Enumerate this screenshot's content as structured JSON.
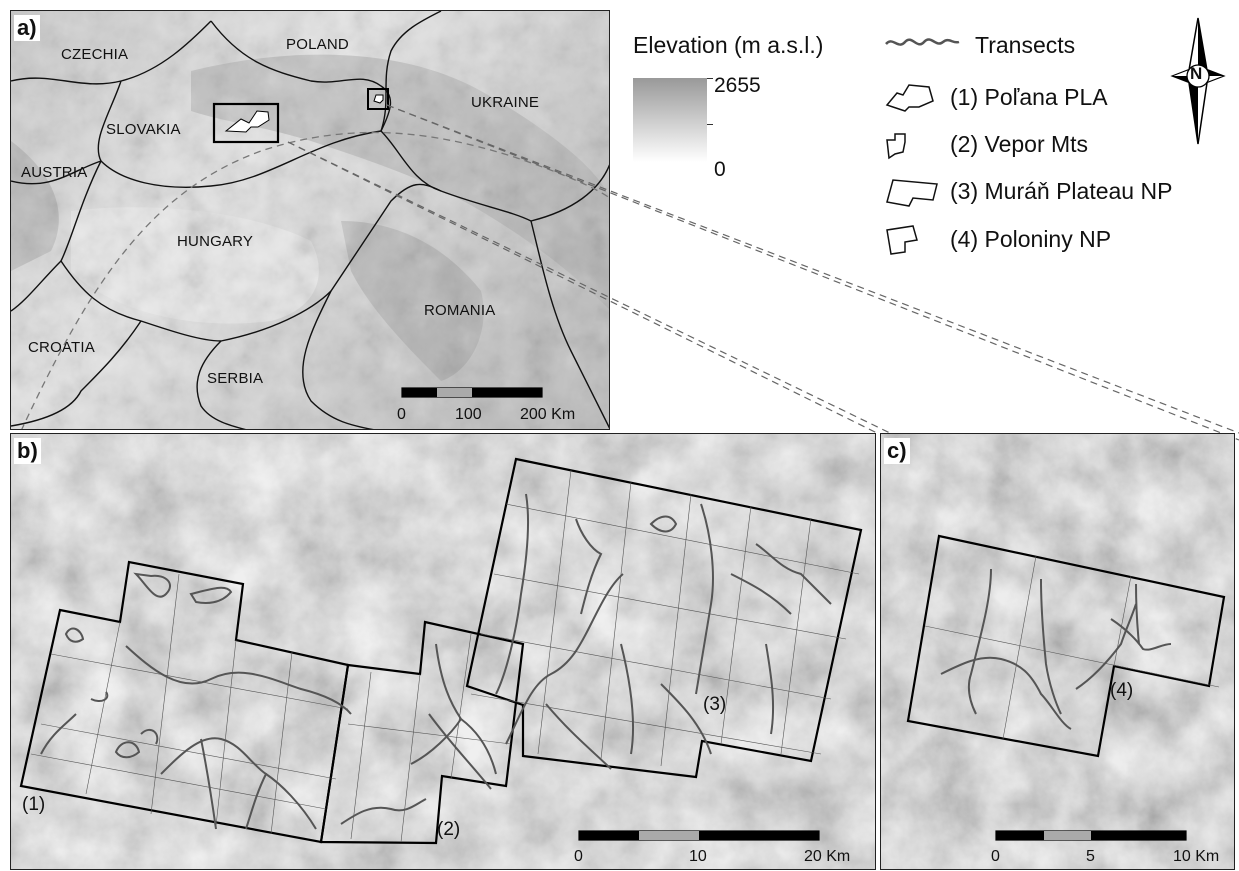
{
  "panels": {
    "a": {
      "label": "a)"
    },
    "b": {
      "label": "b)"
    },
    "c": {
      "label": "c)"
    }
  },
  "countries": {
    "czechia": "CZECHIA",
    "poland": "POLAND",
    "slovakia": "SLOVAKIA",
    "ukraine": "UKRAINE",
    "austria": "AUSTRIA",
    "hungary": "HUNGARY",
    "romania": "ROMANIA",
    "croatia": "CROATIA",
    "serbia": "SERBIA"
  },
  "legend": {
    "elevation_title": "Elevation (m a.s.l.)",
    "elevation_max": "2655",
    "elevation_min": "0",
    "transects_label": "Transects",
    "areas": [
      "(1) Poľana PLA",
      "(2) Vepor Mts",
      "(3) Muráň Plateau NP",
      "(4) Poloniny NP"
    ],
    "north_letter": "N"
  },
  "study_area_numbers": [
    "(1)",
    "(2)",
    "(3)",
    "(4)"
  ],
  "scalebars": {
    "a": [
      "0",
      "100",
      "200 Km"
    ],
    "b": [
      "0",
      "10",
      "20 Km"
    ],
    "c": [
      "0",
      "5",
      "10 Km"
    ]
  },
  "colors": {
    "frame": "#222222",
    "polygon_outline": "#111111",
    "transect": "#555555",
    "hillshade_light": "#f2f2f2",
    "hillshade_dark": "#8c8c8c"
  }
}
